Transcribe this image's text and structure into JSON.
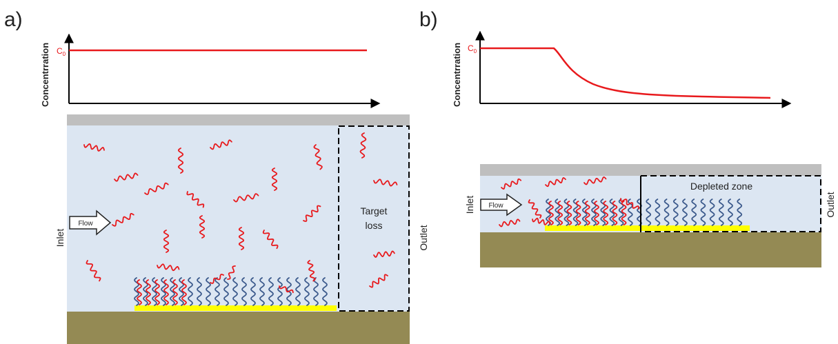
{
  "panel_a": {
    "letter": "a)",
    "y_axis_label": "Concentrration",
    "c0_main": "C",
    "c0_sub": "0",
    "inlet": "Inlet",
    "outlet": "Outlet",
    "flow": "Flow",
    "zone_line1": "Target",
    "zone_line2": "loss"
  },
  "panel_b": {
    "letter": "b)",
    "y_axis_label": "Concentrration",
    "c0_main": "C",
    "c0_sub": "0",
    "inlet": "Inlet",
    "outlet": "Outlet",
    "flow": "Flow",
    "zone_label": "Depleted zone"
  },
  "colors": {
    "target": "#e8191c",
    "probe": "#3c5a8c",
    "channel": "#dce6f2",
    "wall": "#bfbfbf",
    "substrate": "#948a54",
    "electrode": "#ffff00"
  }
}
